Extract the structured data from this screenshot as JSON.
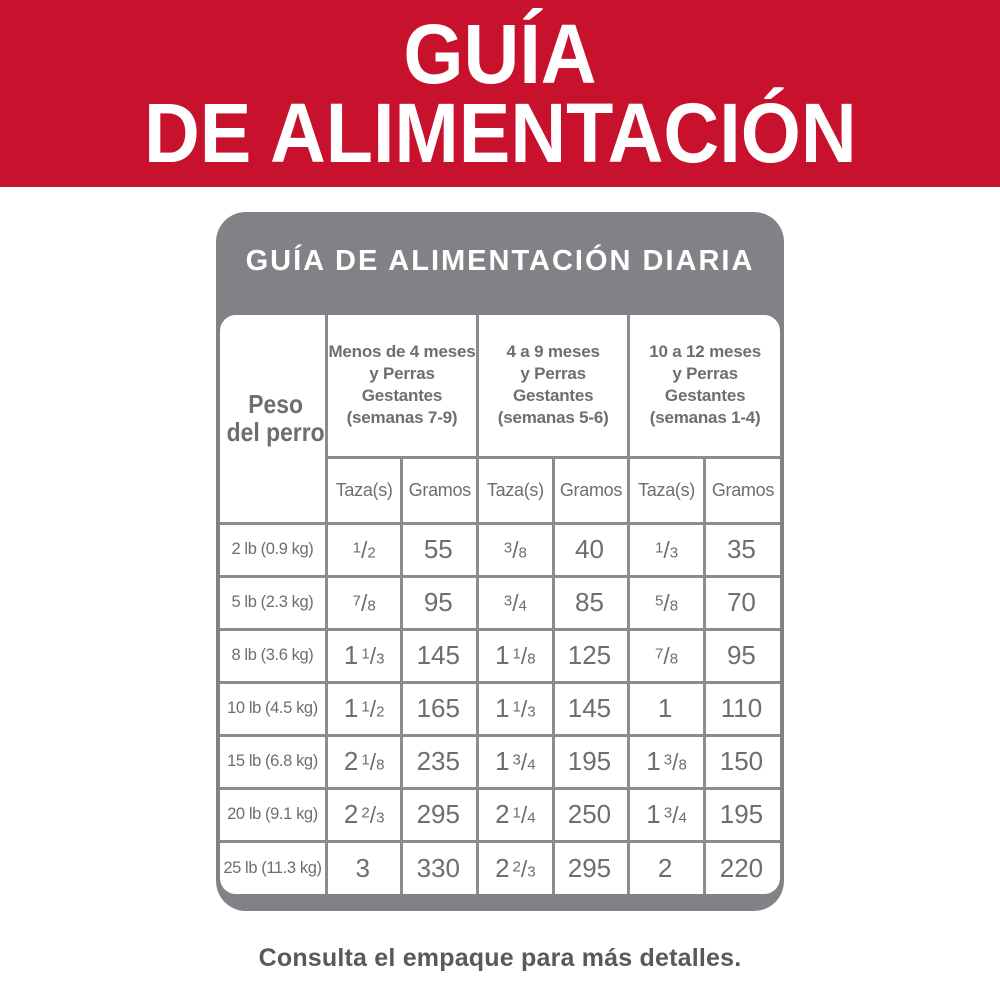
{
  "banner": {
    "line1": "GUÍA",
    "line2": "DE ALIMENTACIÓN"
  },
  "card": {
    "title": "GUÍA DE ALIMENTACIÓN DIARIA"
  },
  "table": {
    "corner_header_lines": [
      "Peso",
      "del perro"
    ],
    "groups": [
      {
        "label_lines": [
          "Menos de 4 meses",
          "y Perras Gestantes",
          "(semanas 7-9)"
        ],
        "sub_headers": [
          "Taza(s)",
          "Gramos"
        ]
      },
      {
        "label_lines": [
          "4 a 9 meses",
          "y Perras Gestantes",
          "(semanas 5-6)"
        ],
        "sub_headers": [
          "Taza(s)",
          "Gramos"
        ]
      },
      {
        "label_lines": [
          "10 a 12 meses",
          "y Perras Gestantes",
          "(semanas 1-4)"
        ],
        "sub_headers": [
          "Taza(s)",
          "Gramos"
        ]
      }
    ],
    "rows": [
      {
        "weight": "2 lb (0.9 kg)",
        "values": [
          "1/2",
          "55",
          "3/8",
          "40",
          "1/3",
          "35"
        ]
      },
      {
        "weight": "5 lb (2.3 kg)",
        "values": [
          "7/8",
          "95",
          "3/4",
          "85",
          "5/8",
          "70"
        ]
      },
      {
        "weight": "8 lb (3.6 kg)",
        "values": [
          "1 1/3",
          "145",
          "1 1/8",
          "125",
          "7/8",
          "95"
        ]
      },
      {
        "weight": "10 lb (4.5 kg)",
        "values": [
          "1 1/2",
          "165",
          "1 1/3",
          "145",
          "1",
          "110"
        ]
      },
      {
        "weight": "15 lb (6.8 kg)",
        "values": [
          "2 1/8",
          "235",
          "1 3/4",
          "195",
          "1 3/8",
          "150"
        ]
      },
      {
        "weight": "20 lb (9.1 kg)",
        "values": [
          "2 2/3",
          "295",
          "2 1/4",
          "250",
          "1 3/4",
          "195"
        ]
      },
      {
        "weight": "25 lb (11.3 kg)",
        "values": [
          "3",
          "330",
          "2 2/3",
          "295",
          "2",
          "220"
        ]
      }
    ]
  },
  "footer": {
    "note": "Consulta el empaque para más detalles."
  },
  "colors": {
    "banner_red": "#C8122D",
    "card_gray": "#808285",
    "table_border_gray": "#8A8C8F",
    "table_text_gray": "#6D6E71",
    "footer_text_gray": "#58595B"
  }
}
